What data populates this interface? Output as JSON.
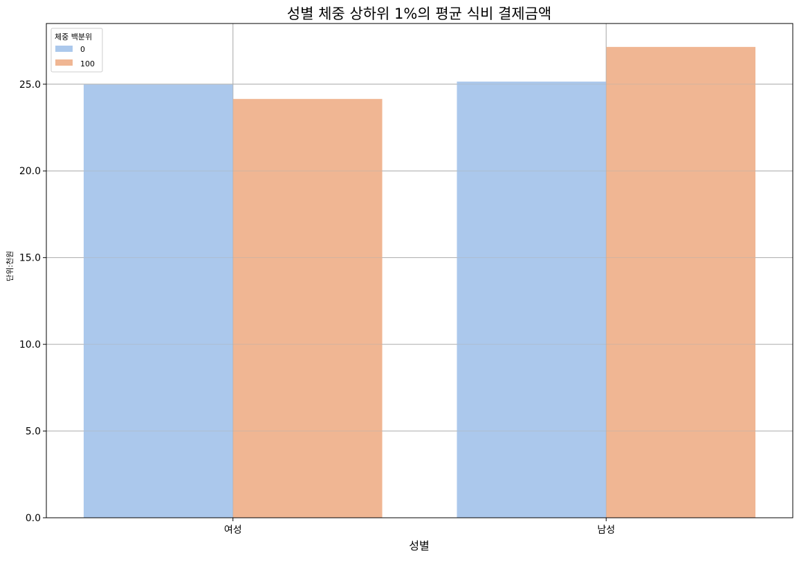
{
  "chart_data": {
    "type": "bar",
    "title": "성별 체중 상하위 1%의 평균 식비 결제금액",
    "xlabel": "성별",
    "ylabel": "단위:천원",
    "categories": [
      "여성",
      "남성"
    ],
    "series": [
      {
        "name": "0",
        "values": [
          24.98,
          25.15
        ],
        "color": "#abc8ec"
      },
      {
        "name": "100",
        "values": [
          24.15,
          27.15
        ],
        "color": "#f0b693"
      }
    ],
    "ylim": [
      0,
      28.5
    ],
    "yticks": [
      0,
      5,
      10,
      15,
      20,
      25
    ],
    "ytick_labels": [
      "0.0",
      "5.0",
      "10.0",
      "15.0",
      "20.0",
      "25.0"
    ],
    "grid": true,
    "legend": {
      "title": "체중 백분위",
      "placement": "top-left"
    }
  }
}
